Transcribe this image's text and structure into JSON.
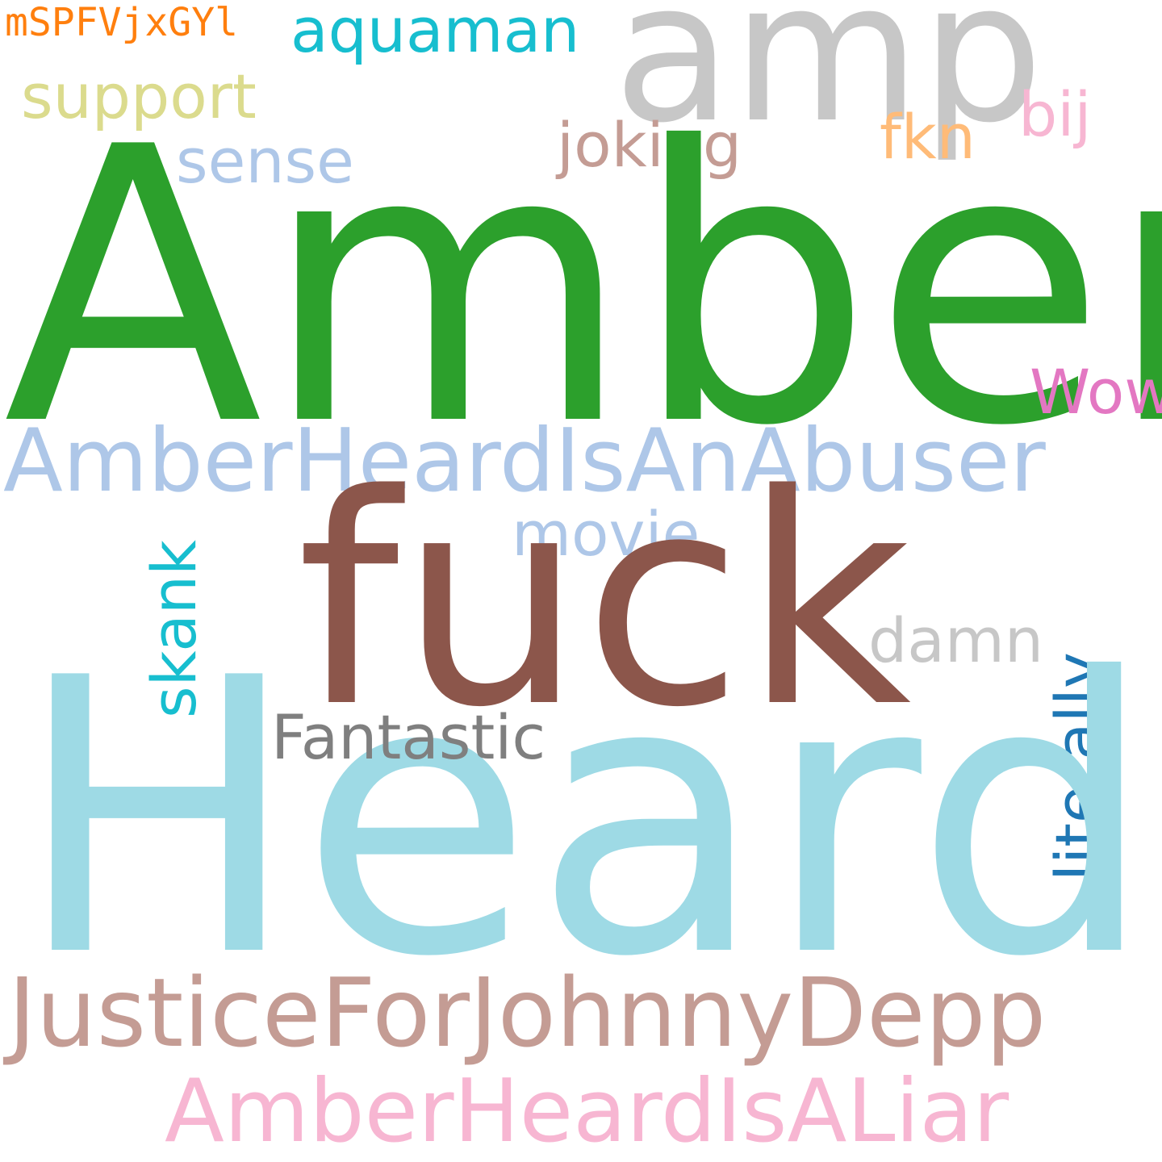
{
  "words": {
    "amp": {
      "text": "amp",
      "color": "#c7c7c7"
    },
    "mspf": {
      "text": "mSPFVjxGYl",
      "color": "#ff7f0e"
    },
    "aquaman": {
      "text": "aquaman",
      "color": "#17becf"
    },
    "support": {
      "text": "support",
      "color": "#dbdb8d"
    },
    "bij": {
      "text": "bij",
      "color": "#f7b6d2"
    },
    "fkn": {
      "text": "fkn",
      "color": "#ffbb78"
    },
    "joking": {
      "text": "joking",
      "color": "#c49c94"
    },
    "sense": {
      "text": "sense",
      "color": "#aec7e8"
    },
    "amber": {
      "text": "Amber",
      "color": "#2ca02c"
    },
    "wow": {
      "text": "Wow",
      "color": "#e377c2"
    },
    "abuser": {
      "text": "AmberHeardIsAnAbuser",
      "color": "#aec7e8"
    },
    "fuck": {
      "text": "fuck",
      "color": "#8c564b"
    },
    "movie": {
      "text": "movie",
      "color": "#aec7e8"
    },
    "skank": {
      "text": "skank",
      "color": "#17becf"
    },
    "damn": {
      "text": "damn",
      "color": "#c7c7c7"
    },
    "literally": {
      "text": "literally",
      "color": "#1f77b4"
    },
    "fantastic": {
      "text": "Fantastic",
      "color": "#7f7f7f"
    },
    "heard": {
      "text": "Heard",
      "color": "#9edae5"
    },
    "justice": {
      "text": "JusticeForJohnnyDepp",
      "color": "#c49c94"
    },
    "liar": {
      "text": "AmberHeardIsALiar",
      "color": "#f7b6d2"
    }
  }
}
